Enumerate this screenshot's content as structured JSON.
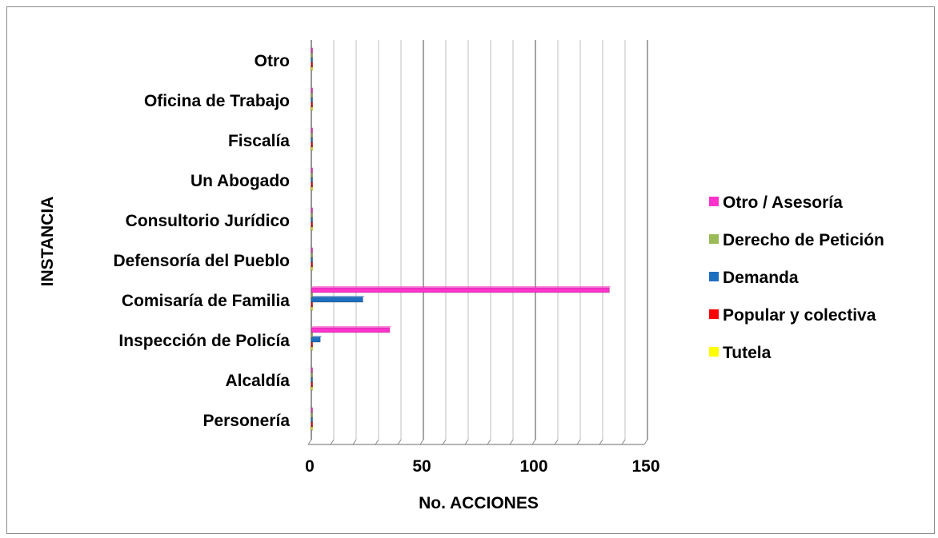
{
  "chart_data": {
    "type": "bar",
    "orientation": "horizontal",
    "style": "3d-clustered",
    "categories": [
      "Personería",
      "Alcaldía",
      "Inspección de Policía",
      "Comisaría de Familia",
      "Defensoría del Pueblo",
      "Consultorio Jurídico",
      "Un Abogado",
      "Fiscalía",
      "Oficina de Trabajo",
      "Otro"
    ],
    "series": [
      {
        "name": "Tutela",
        "color": "#ffff00",
        "values": [
          0,
          0,
          0,
          0,
          0,
          0,
          0,
          0,
          0,
          0
        ]
      },
      {
        "name": "Popular y colectiva",
        "color": "#ff0000",
        "values": [
          0,
          0,
          0,
          0,
          0,
          0,
          0,
          0,
          0,
          0
        ]
      },
      {
        "name": "Demanda",
        "color": "#1f6fc0",
        "values": [
          0,
          0,
          4,
          23,
          0,
          0,
          0,
          0,
          0,
          0
        ]
      },
      {
        "name": "Derecho de Petición",
        "color": "#9bbb59",
        "values": [
          0,
          0,
          0,
          0,
          0,
          0,
          0,
          0,
          0,
          0
        ]
      },
      {
        "name": "Otro / Asesoría",
        "color": "#ff33cc",
        "values": [
          0,
          0,
          35,
          133,
          0,
          0,
          0,
          0,
          0,
          0
        ]
      }
    ],
    "xlabel": "No. ACCIONES",
    "ylabel": "INSTANCIA",
    "xlim": [
      0,
      150
    ],
    "xticks": [
      "0",
      "50",
      "100",
      "150"
    ],
    "grid": true,
    "legend_position": "right",
    "legend_order": [
      "Otro / Asesoría",
      "Derecho de Petición",
      "Demanda",
      "Popular y colectiva",
      "Tutela"
    ]
  }
}
